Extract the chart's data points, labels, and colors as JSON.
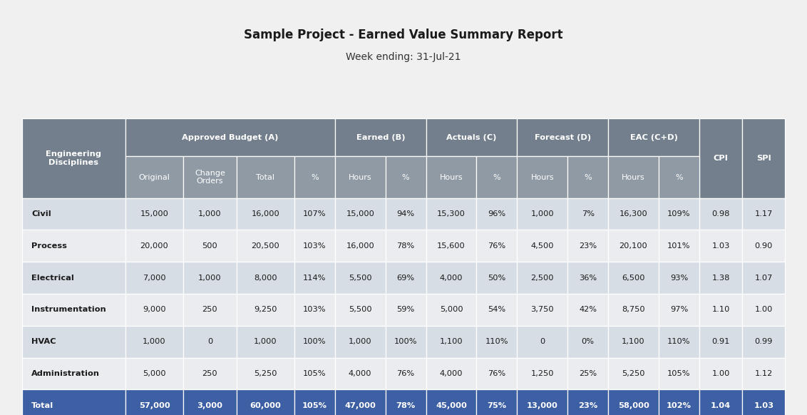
{
  "title": "Sample Project - Earned Value Summary Report",
  "subtitle": "Week ending: 31-Jul-21",
  "title_fontsize": 12,
  "subtitle_fontsize": 10,
  "rows": [
    {
      "label": "Civil",
      "values": [
        "15,000",
        "1,000",
        "16,000",
        "107%",
        "15,000",
        "94%",
        "15,300",
        "96%",
        "1,000",
        "7%",
        "16,300",
        "109%",
        "0.98",
        "1.17"
      ]
    },
    {
      "label": "Process",
      "values": [
        "20,000",
        "500",
        "20,500",
        "103%",
        "16,000",
        "78%",
        "15,600",
        "76%",
        "4,500",
        "23%",
        "20,100",
        "101%",
        "1.03",
        "0.90"
      ]
    },
    {
      "label": "Electrical",
      "values": [
        "7,000",
        "1,000",
        "8,000",
        "114%",
        "5,500",
        "69%",
        "4,000",
        "50%",
        "2,500",
        "36%",
        "6,500",
        "93%",
        "1.38",
        "1.07"
      ]
    },
    {
      "label": "Instrumentation",
      "values": [
        "9,000",
        "250",
        "9,250",
        "103%",
        "5,500",
        "59%",
        "5,000",
        "54%",
        "3,750",
        "42%",
        "8,750",
        "97%",
        "1.10",
        "1.00"
      ]
    },
    {
      "label": "HVAC",
      "values": [
        "1,000",
        "0",
        "1,000",
        "100%",
        "1,000",
        "100%",
        "1,100",
        "110%",
        "0",
        "0%",
        "1,100",
        "110%",
        "0.91",
        "0.99"
      ]
    },
    {
      "label": "Administration",
      "values": [
        "5,000",
        "250",
        "5,250",
        "105%",
        "4,000",
        "76%",
        "4,000",
        "76%",
        "1,250",
        "25%",
        "5,250",
        "105%",
        "1.00",
        "1.12"
      ]
    }
  ],
  "total_row": {
    "label": "Total",
    "values": [
      "57,000",
      "3,000",
      "60,000",
      "105%",
      "47,000",
      "78%",
      "45,000",
      "75%",
      "13,000",
      "23%",
      "58,000",
      "102%",
      "1.04",
      "1.03"
    ]
  },
  "header_bg": "#737f8c",
  "header_text": "#ffffff",
  "subheader_bg": "#8f9aa5",
  "row_bg_even": "#d6dde4",
  "row_bg_odd": "#eaecf0",
  "total_bg": "#3d5fa3",
  "total_text": "#ffffff",
  "fig_bg": "#f0f0f0",
  "col_widths": [
    1.4,
    0.78,
    0.72,
    0.78,
    0.55,
    0.68,
    0.55,
    0.68,
    0.55,
    0.68,
    0.55,
    0.68,
    0.55,
    0.58,
    0.58
  ],
  "group_spans": [
    [
      1,
      4,
      "Approved Budget (A)"
    ],
    [
      5,
      6,
      "Earned (B)"
    ],
    [
      7,
      8,
      "Actuals (C)"
    ],
    [
      9,
      10,
      "Forecast (D)"
    ],
    [
      11,
      12,
      "EAC (C+D)"
    ]
  ],
  "subheader_labels": [
    "Original",
    "Change\nOrders",
    "Total",
    "%",
    "Hours",
    "%",
    "Hours",
    "%",
    "Hours",
    "%",
    "Hours",
    "%"
  ],
  "cpi_spi_cols": [
    [
      13,
      "CPI"
    ],
    [
      14,
      "SPI"
    ]
  ]
}
